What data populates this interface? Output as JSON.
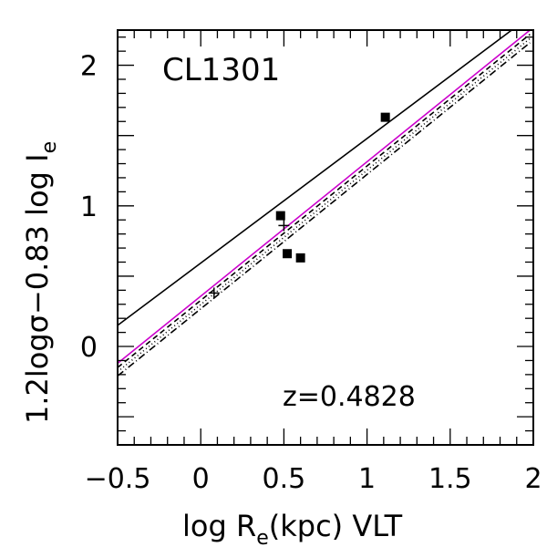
{
  "chart_data": {
    "type": "scatter",
    "xlabel": {
      "prefix": "log R",
      "sub": "e",
      "suffix": "(kpc) VLT"
    },
    "ylabel": {
      "prefix": "1.2logσ−0.83 log I",
      "sub": "e"
    },
    "annotations": {
      "cluster": "CL1301",
      "redshift": "z=0.4828"
    },
    "xlim": [
      -0.5,
      2.0
    ],
    "ylim": [
      -0.7,
      2.25
    ],
    "x_ticks": [
      {
        "value": -0.5,
        "label": "−0.5"
      },
      {
        "value": 0,
        "label": "0"
      },
      {
        "value": 0.5,
        "label": "0.5"
      },
      {
        "value": 1,
        "label": "1"
      },
      {
        "value": 1.5,
        "label": "1.5"
      },
      {
        "value": 2,
        "label": "2"
      }
    ],
    "y_ticks": [
      {
        "value": 0,
        "label": "0"
      },
      {
        "value": 1,
        "label": "1"
      },
      {
        "value": 2,
        "label": "2"
      }
    ],
    "points": [
      {
        "x": 0.48,
        "y": 0.93,
        "marker": "square"
      },
      {
        "x": 0.52,
        "y": 0.66,
        "marker": "square"
      },
      {
        "x": 0.6,
        "y": 0.63,
        "marker": "square"
      },
      {
        "x": 1.11,
        "y": 1.63,
        "marker": "square"
      },
      {
        "x": 0.08,
        "y": 0.38,
        "marker": "cross"
      },
      {
        "x": 0.5,
        "y": 0.86,
        "marker": "cross"
      }
    ],
    "lines": [
      {
        "x": [
          -0.5,
          1.87
        ],
        "y": [
          0.15,
          2.25
        ],
        "color": "#000000",
        "dash": ""
      },
      {
        "x": [
          -0.5,
          1.98
        ],
        "y": [
          -0.12,
          2.25
        ],
        "color": "#cc00cc",
        "dash": ""
      },
      {
        "x": [
          -0.5,
          1.98
        ],
        "y": [
          -0.15,
          2.22
        ],
        "color": "#000000",
        "dash": "6,4"
      },
      {
        "x": [
          -0.5,
          1.98
        ],
        "y": [
          -0.18,
          2.19
        ],
        "color": "#000000",
        "dash": "1,3"
      },
      {
        "x": [
          -0.5,
          1.98
        ],
        "y": [
          -0.21,
          2.16
        ],
        "color": "#000000",
        "dash": "8,3,1,3"
      }
    ]
  }
}
